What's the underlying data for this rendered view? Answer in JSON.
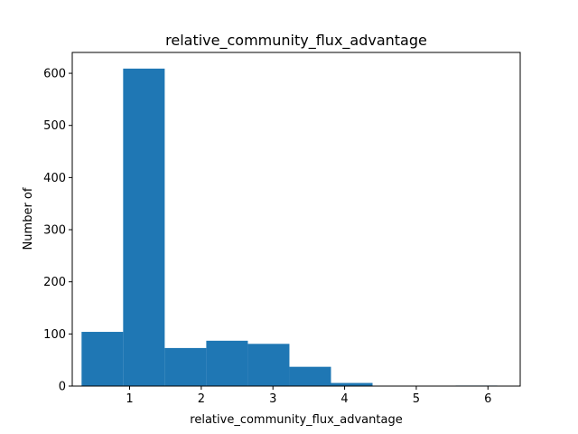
{
  "chart_data": {
    "type": "bar",
    "title": "relative_community_flux_advantage",
    "xlabel": "relative_community_flux_advantage",
    "ylabel": "Number of",
    "xlim": [
      0.2,
      6.45
    ],
    "ylim": [
      0,
      640
    ],
    "xticks": [
      1,
      2,
      3,
      4,
      5,
      6
    ],
    "yticks": [
      0,
      100,
      200,
      300,
      400,
      500,
      600
    ],
    "bin_edges": [
      0.33,
      0.91,
      1.49,
      2.07,
      2.65,
      3.23,
      3.81,
      4.39,
      4.97,
      5.55,
      6.13
    ],
    "values": [
      104,
      609,
      73,
      87,
      81,
      37,
      6,
      0,
      0,
      1
    ],
    "bar_color": "#1f77b4",
    "grid": false
  }
}
